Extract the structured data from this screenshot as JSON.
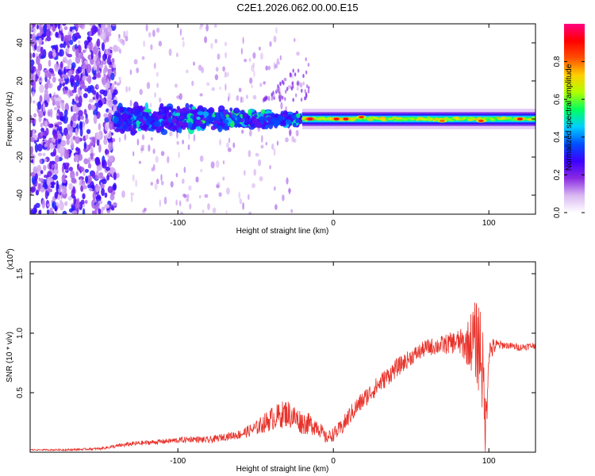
{
  "title": "C2E1.2026.062.00.00.E15",
  "colors": {
    "signal": "#e8322a",
    "frame": "#000000"
  },
  "chart_data": [
    {
      "type": "heatmap",
      "xlabel": "Height of straight line (km)",
      "ylabel": "Frequency (Hz)",
      "xlim": [
        -195,
        130
      ],
      "ylim": [
        -50,
        50
      ],
      "xticks": [
        -100,
        0,
        100
      ],
      "xtick_labels": [
        "-100",
        "0",
        "100"
      ],
      "yticks": [
        -40,
        -20,
        0,
        20,
        40
      ],
      "ytick_labels": [
        "-40",
        "-20",
        "0",
        "20",
        "40"
      ],
      "colorbar": {
        "label": "Normalized spectral amplitude",
        "range": [
          0.0,
          1.0
        ],
        "ticks": [
          0.0,
          0.2,
          0.4,
          0.6,
          0.8
        ],
        "tick_labels": [
          "0.0",
          "0.2",
          "0.4",
          "0.6",
          "0.8"
        ],
        "colormap": [
          "#ffffff",
          "#d9b8f2",
          "#8a2be2",
          "#3b00ff",
          "#0050ff",
          "#00d0ff",
          "#00ff60",
          "#b0ff00",
          "#ffd000",
          "#ff5000",
          "#ff0000",
          "#ff0080"
        ]
      },
      "regions": [
        {
          "x_range": [
            -195,
            -140
          ],
          "freq_range": [
            -50,
            50
          ],
          "level": 0.25,
          "note_type": "broadband noise"
        },
        {
          "x_range": [
            -140,
            -20
          ],
          "freq_range": [
            -12,
            12
          ],
          "level": 0.35,
          "note_type": "noisy band"
        },
        {
          "x_range": [
            -20,
            130
          ],
          "freq_range": [
            -4,
            4
          ],
          "level": 0.6,
          "note_type": "narrow band"
        }
      ],
      "peaks": [
        {
          "x": -15,
          "freq": 0,
          "amplitude": 0.95
        },
        {
          "x": 2,
          "freq": 0,
          "amplitude": 0.9
        },
        {
          "x": 8,
          "freq": 0,
          "amplitude": 0.9
        },
        {
          "x": 18,
          "freq": 1,
          "amplitude": 0.85
        },
        {
          "x": 70,
          "freq": -1,
          "amplitude": 0.8
        },
        {
          "x": 95,
          "freq": -1,
          "amplitude": 0.85
        },
        {
          "x": 120,
          "freq": 0,
          "amplitude": 0.9
        }
      ]
    },
    {
      "type": "line",
      "xlabel": "Height of straight line (km)",
      "ylabel": "SNR (10 * v/v)",
      "multiplier_label": "(x10",
      "multiplier_exp": "4",
      "multiplier_close": ")",
      "xlim": [
        -195,
        130
      ],
      "ylim": [
        0,
        1.6
      ],
      "xticks": [
        -100,
        0,
        100
      ],
      "xtick_labels": [
        "-100",
        "0",
        "100"
      ],
      "yticks": [
        0.5,
        1.0,
        1.5
      ],
      "ytick_labels": [
        "0.5",
        "1.0",
        "1.5"
      ],
      "series": [
        {
          "x": [
            -195,
            -170,
            -150,
            -140,
            -130,
            -120,
            -110,
            -100,
            -90,
            -80,
            -70,
            -60,
            -50,
            -40,
            -30,
            -20,
            -10,
            -5,
            0,
            5,
            10,
            15,
            20,
            30,
            40,
            50,
            60,
            70,
            80,
            85,
            90,
            95,
            98,
            100,
            105,
            110,
            120,
            130
          ],
          "y": [
            0.02,
            0.02,
            0.03,
            0.05,
            0.07,
            0.08,
            0.09,
            0.1,
            0.11,
            0.1,
            0.13,
            0.15,
            0.2,
            0.28,
            0.33,
            0.25,
            0.22,
            0.12,
            0.15,
            0.2,
            0.3,
            0.38,
            0.45,
            0.58,
            0.7,
            0.8,
            0.88,
            0.9,
            0.93,
            0.9,
            0.95,
            0.88,
            0.2,
            0.85,
            0.9,
            0.9,
            0.88,
            0.9
          ],
          "noise": [
            0.005,
            0.008,
            0.01,
            0.015,
            0.02,
            0.02,
            0.02,
            0.025,
            0.025,
            0.03,
            0.03,
            0.04,
            0.06,
            0.1,
            0.12,
            0.1,
            0.08,
            0.05,
            0.06,
            0.07,
            0.08,
            0.08,
            0.08,
            0.08,
            0.08,
            0.07,
            0.07,
            0.08,
            0.1,
            0.15,
            0.3,
            0.45,
            0.3,
            0.12,
            0.05,
            0.03,
            0.03,
            0.03
          ]
        }
      ]
    }
  ]
}
